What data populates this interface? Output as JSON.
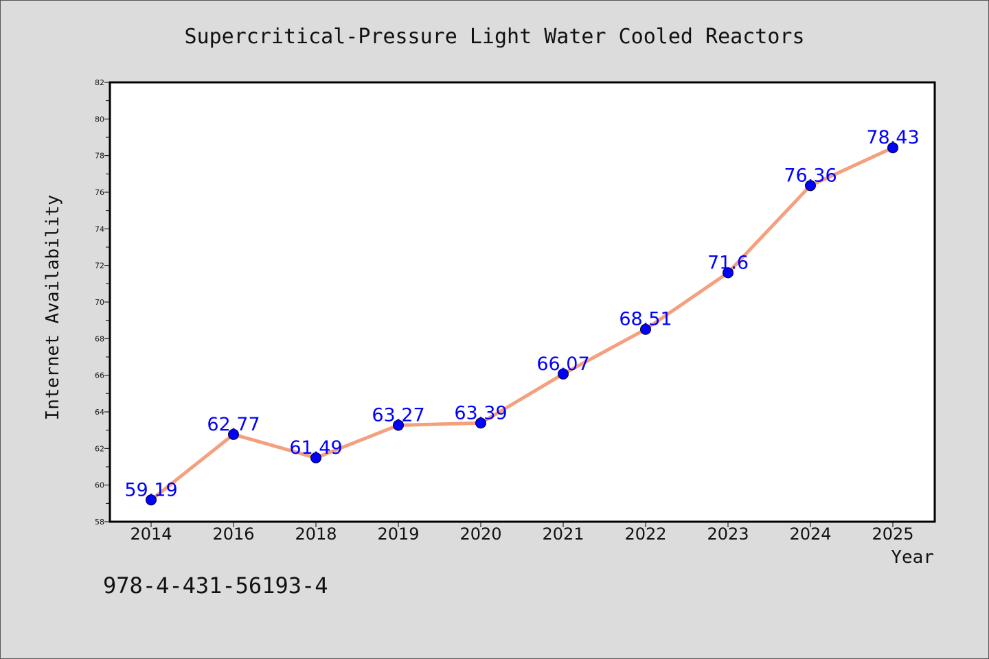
{
  "chart_data": {
    "type": "line",
    "title": "Supercritical-Pressure Light Water Cooled Reactors",
    "xlabel": "Year",
    "ylabel": "Internet Availability",
    "categories": [
      "2014",
      "2016",
      "2018",
      "2019",
      "2020",
      "2021",
      "2022",
      "2023",
      "2024",
      "2025"
    ],
    "series": [
      {
        "values": [
          59.19,
          62.77,
          61.49,
          63.27,
          63.39,
          66.07,
          68.51,
          71.6,
          76.36,
          78.43
        ],
        "labels": [
          "59.19",
          "62.77",
          "61.49",
          "63.27",
          "63.39",
          "66.07",
          "68.51",
          "71.6",
          "76.36",
          "78.43"
        ],
        "line_color": "#f4a07f",
        "marker_color": "#0000ff"
      }
    ],
    "ylim": [
      58,
      82
    ],
    "yticks": [
      58,
      60,
      62,
      64,
      66,
      68,
      70,
      72,
      74,
      76,
      78,
      80,
      82
    ],
    "grid": false,
    "legend": "none"
  },
  "footer": {
    "isbn": "978-4-431-56193-4"
  },
  "colors": {
    "background": "#dcdcdc",
    "plot_background": "#ffffff",
    "line": "#f4a07f",
    "marker": "#0000ff",
    "label": "#0000ff"
  }
}
